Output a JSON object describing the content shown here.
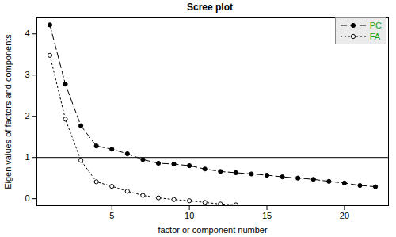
{
  "chart_data": {
    "type": "line",
    "title": "Scree plot",
    "x_label": "factor or component number",
    "y_label": "Eigen values of factors and components",
    "x": [
      1,
      2,
      3,
      4,
      5,
      6,
      7,
      8,
      9,
      10,
      11,
      12,
      13,
      14,
      15,
      16,
      17,
      18,
      19,
      20,
      21,
      22
    ],
    "series": [
      {
        "name": "PC",
        "color": "#000000",
        "marker": "filled circle",
        "line_style": "dashed",
        "values": [
          4.22,
          2.78,
          1.77,
          1.28,
          1.2,
          1.09,
          0.95,
          0.86,
          0.84,
          0.8,
          0.72,
          0.66,
          0.63,
          0.6,
          0.57,
          0.53,
          0.5,
          0.47,
          0.42,
          0.38,
          0.32,
          0.29
        ]
      },
      {
        "name": "FA",
        "color": "#000000",
        "marker": "open circle",
        "line_style": "dotted",
        "values": [
          3.48,
          1.93,
          0.93,
          0.41,
          0.3,
          0.18,
          0.08,
          0.02,
          -0.02,
          -0.05,
          -0.09,
          -0.13,
          -0.15,
          null,
          null,
          null,
          null,
          null,
          null,
          null,
          null,
          null
        ]
      }
    ],
    "reference_line": 1,
    "xlim": [
      0.16,
      22.84
    ],
    "xticks": [
      5,
      10,
      15,
      20
    ],
    "ylim": [
      -0.17,
      4.39
    ],
    "yticks": [
      0,
      1,
      2,
      3,
      4
    ],
    "legend": "top-right",
    "grid": false
  }
}
